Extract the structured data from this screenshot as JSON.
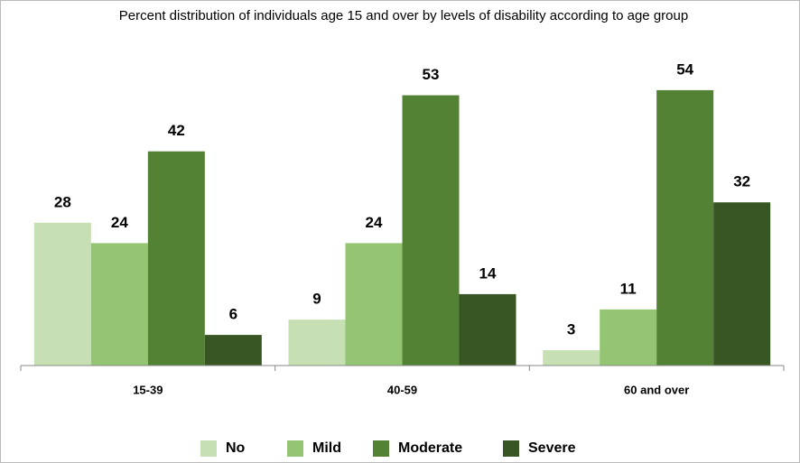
{
  "chart_data": {
    "type": "bar",
    "title": "Percent distribution of individuals age 15 and over by levels of disability according to age group",
    "categories": [
      "15-39",
      "40-59",
      "60 and over"
    ],
    "series": [
      {
        "name": "No",
        "color": "#c6e0b4",
        "values": [
          28,
          9,
          3
        ]
      },
      {
        "name": "Mild",
        "color": "#93c572",
        "values": [
          24,
          24,
          11
        ]
      },
      {
        "name": "Moderate",
        "color": "#548235",
        "values": [
          42,
          53,
          54
        ]
      },
      {
        "name": "Severe",
        "color": "#375623",
        "values": [
          6,
          14,
          32
        ]
      }
    ],
    "ylim": [
      0,
      60
    ],
    "legend": "bottom"
  }
}
